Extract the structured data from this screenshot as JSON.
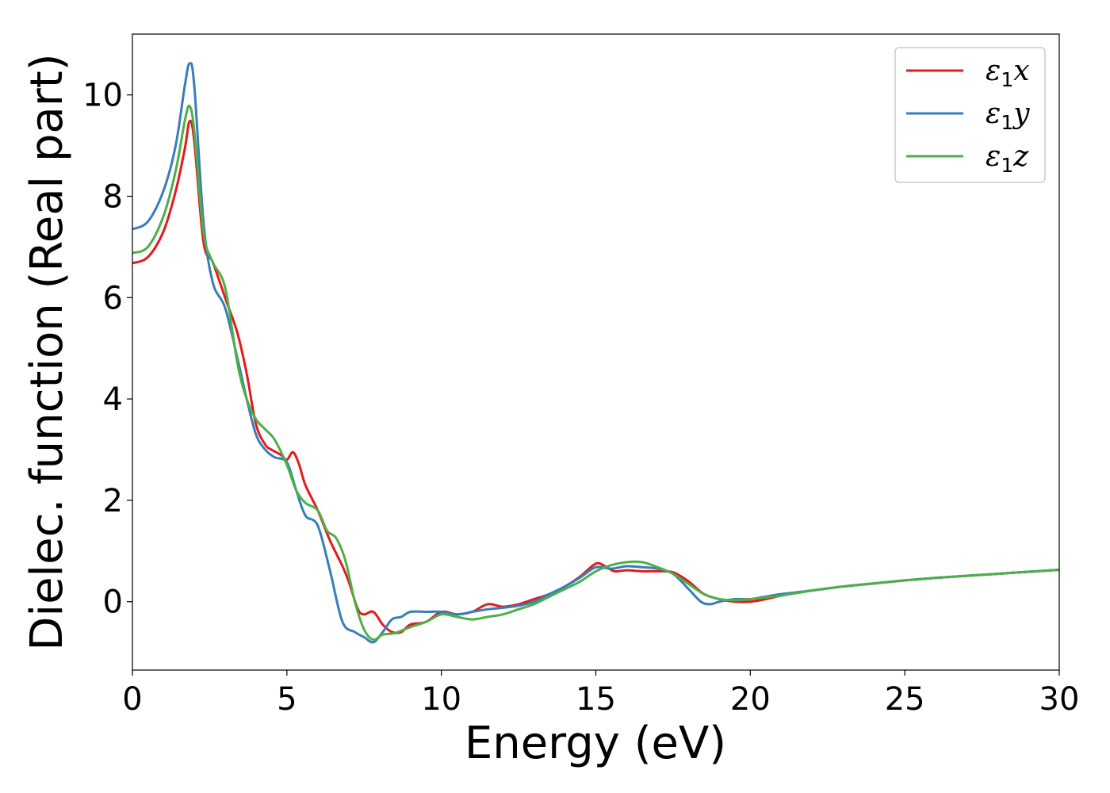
{
  "chart_data": {
    "type": "line",
    "title": "",
    "xlabel": "Energy (eV)",
    "ylabel": "Dielec. function (Real part)",
    "xlim": [
      0,
      30
    ],
    "ylim": [
      -1.35,
      11.2
    ],
    "xticks": [
      0,
      5,
      10,
      15,
      20,
      25,
      30
    ],
    "yticks": [
      0,
      2,
      4,
      6,
      8,
      10
    ],
    "grid": false,
    "legend_position": "top-right",
    "series": [
      {
        "name": "ε1x",
        "symbol": "ε",
        "sub": "1",
        "suffix": "x",
        "color": "#e41a1c",
        "x": [
          0,
          0.5,
          1.0,
          1.4,
          1.7,
          1.85,
          2.0,
          2.3,
          2.6,
          3.0,
          3.4,
          3.7,
          4.0,
          4.3,
          4.5,
          4.8,
          5.0,
          5.2,
          5.4,
          5.6,
          6.0,
          6.4,
          6.8,
          7.0,
          7.3,
          7.5,
          7.8,
          8.1,
          8.4,
          8.7,
          9.0,
          9.5,
          10.0,
          10.5,
          11.0,
          11.5,
          12.0,
          12.5,
          13.0,
          13.5,
          14.0,
          14.5,
          15.0,
          15.3,
          15.6,
          16.0,
          16.5,
          17.0,
          17.5,
          18.0,
          18.5,
          19.0,
          19.5,
          20.0,
          20.5,
          21.0,
          22.0,
          23.0,
          24.0,
          25.0,
          26.0,
          27.0,
          28.0,
          29.0,
          30.0
        ],
        "values": [
          6.68,
          6.8,
          7.3,
          8.1,
          8.95,
          9.48,
          9.1,
          7.1,
          6.7,
          6.0,
          5.3,
          4.5,
          3.5,
          3.1,
          3.0,
          2.9,
          2.8,
          2.95,
          2.7,
          2.3,
          1.8,
          1.2,
          0.7,
          0.4,
          -0.15,
          -0.25,
          -0.2,
          -0.45,
          -0.6,
          -0.6,
          -0.45,
          -0.4,
          -0.2,
          -0.25,
          -0.2,
          -0.05,
          -0.1,
          -0.05,
          0.05,
          0.15,
          0.3,
          0.5,
          0.75,
          0.7,
          0.6,
          0.62,
          0.6,
          0.6,
          0.58,
          0.4,
          0.15,
          0.05,
          0.0,
          0.0,
          0.05,
          0.12,
          0.22,
          0.3,
          0.36,
          0.42,
          0.47,
          0.51,
          0.55,
          0.59,
          0.63
        ]
      },
      {
        "name": "ε1y",
        "symbol": "ε",
        "sub": "1",
        "suffix": "y",
        "color": "#377eb8",
        "x": [
          0,
          0.5,
          1.0,
          1.4,
          1.7,
          1.85,
          2.0,
          2.3,
          2.6,
          3.0,
          3.4,
          3.7,
          4.0,
          4.3,
          4.6,
          5.0,
          5.3,
          5.6,
          6.0,
          6.4,
          6.8,
          7.2,
          7.5,
          7.8,
          8.1,
          8.4,
          8.7,
          9.0,
          9.5,
          10.0,
          10.5,
          11.0,
          11.5,
          12.0,
          12.5,
          13.0,
          13.5,
          14.0,
          14.5,
          15.0,
          15.5,
          16.0,
          16.5,
          17.0,
          17.5,
          18.0,
          18.4,
          18.7,
          19.0,
          19.5,
          20.0,
          20.5,
          21.0,
          22.0,
          23.0,
          24.0,
          25.0,
          26.0,
          27.0,
          28.0,
          29.0,
          30.0
        ],
        "values": [
          7.35,
          7.5,
          8.1,
          9.0,
          10.2,
          10.62,
          10.2,
          7.5,
          6.3,
          5.8,
          4.8,
          4.0,
          3.3,
          3.0,
          2.85,
          2.75,
          2.2,
          1.7,
          1.5,
          0.6,
          -0.4,
          -0.6,
          -0.7,
          -0.8,
          -0.6,
          -0.35,
          -0.3,
          -0.2,
          -0.2,
          -0.2,
          -0.25,
          -0.2,
          -0.15,
          -0.12,
          -0.08,
          0.0,
          0.15,
          0.3,
          0.48,
          0.68,
          0.65,
          0.7,
          0.68,
          0.65,
          0.55,
          0.25,
          0.0,
          -0.05,
          0.0,
          0.05,
          0.05,
          0.1,
          0.15,
          0.22,
          0.3,
          0.36,
          0.42,
          0.47,
          0.51,
          0.55,
          0.59,
          0.63
        ]
      },
      {
        "name": "ε1z",
        "symbol": "ε",
        "sub": "1",
        "suffix": "z",
        "color": "#4daf4a",
        "x": [
          0,
          0.5,
          1.0,
          1.4,
          1.7,
          1.85,
          2.0,
          2.3,
          2.6,
          3.0,
          3.4,
          3.7,
          4.0,
          4.3,
          4.6,
          5.0,
          5.3,
          5.6,
          6.0,
          6.3,
          6.6,
          6.9,
          7.2,
          7.5,
          7.8,
          8.1,
          8.5,
          9.0,
          9.5,
          10.0,
          10.5,
          11.0,
          11.5,
          12.0,
          12.5,
          13.0,
          13.5,
          14.0,
          14.5,
          15.0,
          15.5,
          16.0,
          16.5,
          17.0,
          17.5,
          18.0,
          18.5,
          19.0,
          19.5,
          20.0,
          21.0,
          22.0,
          23.0,
          24.0,
          25.0,
          26.0,
          27.0,
          28.0,
          29.0,
          30.0
        ],
        "values": [
          6.88,
          7.0,
          7.6,
          8.5,
          9.5,
          9.78,
          9.3,
          7.3,
          6.7,
          6.2,
          4.7,
          4.0,
          3.6,
          3.4,
          3.2,
          2.7,
          2.2,
          1.95,
          1.8,
          1.4,
          1.25,
          0.8,
          0.0,
          -0.55,
          -0.75,
          -0.65,
          -0.62,
          -0.5,
          -0.4,
          -0.25,
          -0.3,
          -0.35,
          -0.3,
          -0.25,
          -0.15,
          -0.05,
          0.1,
          0.25,
          0.4,
          0.6,
          0.72,
          0.78,
          0.78,
          0.68,
          0.55,
          0.35,
          0.15,
          0.05,
          0.03,
          0.05,
          0.12,
          0.22,
          0.3,
          0.36,
          0.42,
          0.47,
          0.51,
          0.55,
          0.59,
          0.63
        ]
      }
    ]
  }
}
